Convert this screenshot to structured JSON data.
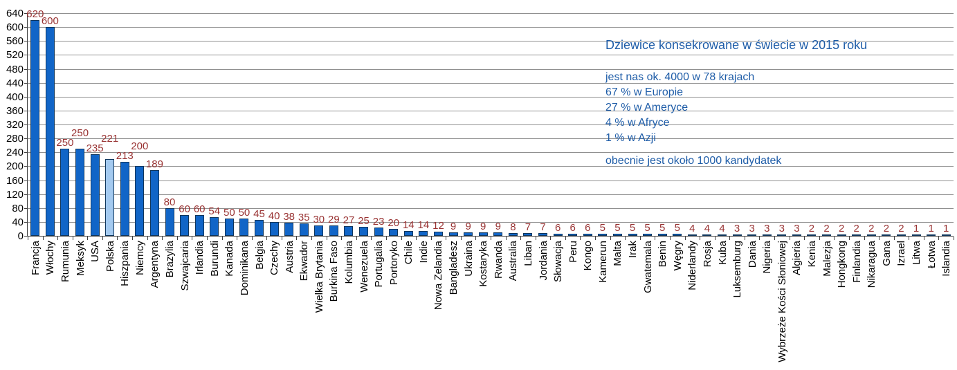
{
  "chart_data": {
    "type": "bar",
    "title": "Dziewice konsekrowane w świecie w 2015 roku",
    "categories": [
      "Francja",
      "Włochy",
      "Rumunia",
      "Meksyk",
      "USA",
      "Polska",
      "Hiszpania",
      "Niemcy",
      "Argentyna",
      "Brazylia",
      "Szwajcaria",
      "Irlandia",
      "Burundi",
      "Kanada",
      "Dominikana",
      "Belgia",
      "Czechy",
      "Austria",
      "Ekwador",
      "Wielka Brytania",
      "Burkina Faso",
      "Kolumbia",
      "Wenezuela",
      "Portugalia",
      "Portoryko",
      "Chile",
      "Indie",
      "Nowa Zelandia",
      "Bangladesz",
      "Ukraina",
      "Kostaryka",
      "Rwanda",
      "Australia",
      "Liban",
      "Jordania",
      "Słowacja",
      "Peru",
      "Kongo",
      "Kamerun",
      "Malta",
      "Irak",
      "Gwatemala",
      "Benin",
      "Węgry",
      "Niderlandy",
      "Rosja",
      "Kuba",
      "Luksemburg",
      "Dania",
      "Nigeria",
      "Wybrzeże Kości Słoniowej",
      "Algieria",
      "Kenia",
      "Malezja",
      "Hongkong",
      "Finlandia",
      "Nikaragua",
      "Gana",
      "Izrael",
      "Litwa",
      "Łotwa",
      "Islandia"
    ],
    "values": [
      620,
      600,
      250,
      250,
      235,
      221,
      213,
      200,
      189,
      80,
      60,
      60,
      54,
      50,
      50,
      45,
      40,
      38,
      35,
      30,
      29,
      27,
      25,
      23,
      20,
      14,
      14,
      12,
      9,
      9,
      9,
      9,
      8,
      7,
      7,
      6,
      6,
      6,
      5,
      5,
      5,
      5,
      5,
      5,
      4,
      4,
      4,
      3,
      3,
      3,
      3,
      3,
      2,
      2,
      2,
      2,
      2,
      2,
      2,
      1,
      1,
      1
    ],
    "highlight_category": "Polska",
    "xlabel": "",
    "ylabel": "",
    "ylim": [
      0,
      640
    ],
    "ytick_step": 40,
    "grid": "horizontal",
    "legend": "none",
    "bar_value_labels": true,
    "annotations": {
      "lines": [
        "jest nas ok. 4000 w 78 krajach",
        "67 % w Europie",
        "27 % w Ameryce",
        "4 % w Afryce",
        "1 % w Azji"
      ],
      "note": "obecnie jest około 1000 kandydatek"
    }
  },
  "colors": {
    "bar_fill": "#1165C7",
    "bar_border": "#10365C",
    "highlight_fill": "#A4CAF0",
    "value_label": "#993333",
    "annotation_text": "#1F5DA8",
    "gridline": "#909090",
    "axis": "#404040",
    "category_label": "#000000"
  }
}
